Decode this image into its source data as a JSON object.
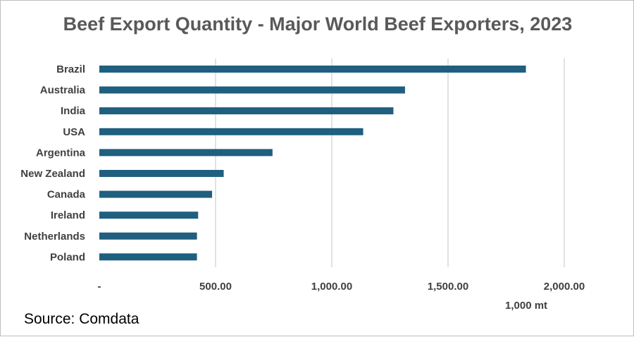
{
  "chart_data": {
    "type": "bar",
    "orientation": "horizontal",
    "title": "Beef Export Quantity - Major World Beef Exporters,  2023",
    "categories": [
      "Brazil",
      "Australia",
      "India",
      "USA",
      "Argentina",
      "New Zealand",
      "Canada",
      "Ireland",
      "Netherlands",
      "Poland"
    ],
    "values": [
      1835,
      1315,
      1265,
      1135,
      745,
      535,
      485,
      425,
      420,
      420
    ],
    "xlim": [
      0,
      2000
    ],
    "x_ticks": [
      0,
      500,
      1000,
      1500,
      2000
    ],
    "x_tick_labels": [
      "-",
      "500.00",
      "1,000.00",
      "1,500.00",
      "2,000.00"
    ],
    "xlabel": "1,000 mt",
    "grid": true,
    "bar_color": "#1f5f7f"
  },
  "source": "Source: Comdata"
}
